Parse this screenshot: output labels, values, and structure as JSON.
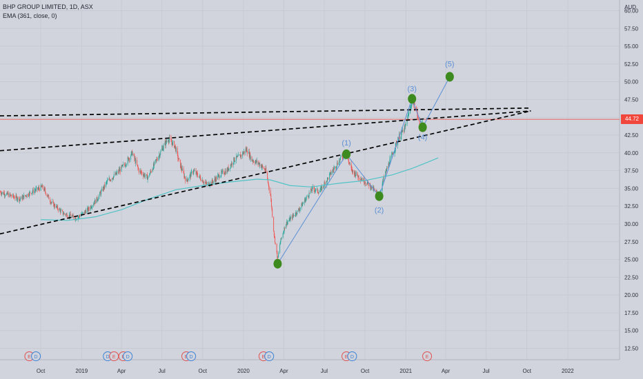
{
  "header": {
    "symbol_line": "BHP GROUP LIMITED, 1D, ASX",
    "indicator_line": "EMA (361, close, 0)",
    "currency": "AUD",
    "last_price": "44.72"
  },
  "colors": {
    "background": "#d1d4dc",
    "candle_up": "#26a69a",
    "candle_down": "#ef5350",
    "ema": "#4fc3c7",
    "wave": "#5b8fd6",
    "marker": "#3d8b1e",
    "trendline": "#000000",
    "last_price_line": "#f0463c",
    "earnings_event": "#e05050",
    "dividend_event": "#3b82d6"
  },
  "chart_data": {
    "type": "candlestick",
    "title": "BHP GROUP LIMITED, 1D, ASX",
    "ylabel": "AUD",
    "ylim": [
      10.9,
      61.5
    ],
    "y_ticks": [
      "60.00",
      "57.50",
      "55.00",
      "52.50",
      "50.00",
      "47.50",
      "45.00",
      "42.50",
      "40.00",
      "37.50",
      "35.00",
      "32.50",
      "30.00",
      "27.50",
      "25.00",
      "22.50",
      "20.00",
      "17.50",
      "15.00",
      "12.50"
    ],
    "x_ticks": [
      "Oct",
      "2019",
      "Apr",
      "Jul",
      "Oct",
      "2020",
      "Apr",
      "Jul",
      "Oct",
      "2021",
      "Apr",
      "Jul",
      "Oct",
      "2022"
    ],
    "x_tick_dates": [
      "2018-10-01",
      "2019-01-01",
      "2019-04-01",
      "2019-07-01",
      "2019-10-01",
      "2020-01-01",
      "2020-04-01",
      "2020-07-01",
      "2020-10-01",
      "2021-01-01",
      "2021-04-01",
      "2021-07-01",
      "2021-10-01",
      "2022-01-01"
    ],
    "grid": true,
    "last_price": 44.72,
    "price_path": [
      [
        "2018-07-01",
        34.5
      ],
      [
        "2018-08-15",
        33.5
      ],
      [
        "2018-09-10",
        34.5
      ],
      [
        "2018-10-05",
        35.2
      ],
      [
        "2018-10-25",
        33.0
      ],
      [
        "2018-11-20",
        31.5
      ],
      [
        "2018-12-20",
        30.8
      ],
      [
        "2019-01-15",
        32.0
      ],
      [
        "2019-02-05",
        33.5
      ],
      [
        "2019-02-28",
        36.0
      ],
      [
        "2019-03-20",
        37.0
      ],
      [
        "2019-04-10",
        38.5
      ],
      [
        "2019-04-25",
        40.0
      ],
      [
        "2019-05-10",
        37.5
      ],
      [
        "2019-05-30",
        36.5
      ],
      [
        "2019-06-15",
        38.5
      ],
      [
        "2019-07-01",
        40.5
      ],
      [
        "2019-07-15",
        42.0
      ],
      [
        "2019-07-30",
        41.0
      ],
      [
        "2019-08-10",
        38.5
      ],
      [
        "2019-08-25",
        36.0
      ],
      [
        "2019-09-10",
        37.5
      ],
      [
        "2019-09-25",
        36.5
      ],
      [
        "2019-10-10",
        35.5
      ],
      [
        "2019-10-25",
        36.0
      ],
      [
        "2019-11-10",
        37.0
      ],
      [
        "2019-11-25",
        37.5
      ],
      [
        "2019-12-10",
        39.0
      ],
      [
        "2019-12-24",
        39.5
      ],
      [
        "2020-01-08",
        40.5
      ],
      [
        "2020-01-20",
        39.0
      ],
      [
        "2020-02-05",
        38.5
      ],
      [
        "2020-02-20",
        37.5
      ],
      [
        "2020-03-02",
        34.0
      ],
      [
        "2020-03-10",
        28.5
      ],
      [
        "2020-03-18",
        25.0
      ],
      [
        "2020-03-24",
        27.5
      ],
      [
        "2020-04-05",
        30.0
      ],
      [
        "2020-04-20",
        31.0
      ],
      [
        "2020-05-05",
        32.0
      ],
      [
        "2020-05-20",
        33.5
      ],
      [
        "2020-06-05",
        35.0
      ],
      [
        "2020-06-20",
        34.5
      ],
      [
        "2020-07-05",
        36.0
      ],
      [
        "2020-07-25",
        38.0
      ],
      [
        "2020-08-10",
        39.5
      ],
      [
        "2020-08-20",
        39.8
      ],
      [
        "2020-09-01",
        37.5
      ],
      [
        "2020-09-20",
        36.5
      ],
      [
        "2020-10-10",
        35.5
      ],
      [
        "2020-10-25",
        34.5
      ],
      [
        "2020-11-02",
        34.0
      ],
      [
        "2020-11-15",
        37.0
      ],
      [
        "2020-11-30",
        39.5
      ],
      [
        "2020-12-15",
        42.0
      ],
      [
        "2020-12-30",
        43.5
      ],
      [
        "2021-01-10",
        46.0
      ],
      [
        "2021-01-15",
        47.5
      ],
      [
        "2021-01-25",
        46.0
      ],
      [
        "2021-02-01",
        43.5
      ],
      [
        "2021-02-08",
        44.5
      ]
    ],
    "series": [
      {
        "name": "EMA (361, close, 0)",
        "type": "line",
        "points": [
          [
            "2018-10-01",
            30.6
          ],
          [
            "2018-12-01",
            30.5
          ],
          [
            "2019-02-01",
            31.0
          ],
          [
            "2019-04-01",
            32.0
          ],
          [
            "2019-06-01",
            33.5
          ],
          [
            "2019-08-01",
            34.8
          ],
          [
            "2019-10-01",
            35.4
          ],
          [
            "2019-12-01",
            35.9
          ],
          [
            "2020-02-01",
            36.3
          ],
          [
            "2020-03-01",
            36.2
          ],
          [
            "2020-04-15",
            35.4
          ],
          [
            "2020-06-01",
            35.2
          ],
          [
            "2020-08-01",
            35.7
          ],
          [
            "2020-10-01",
            36.1
          ],
          [
            "2020-12-01",
            36.9
          ],
          [
            "2021-01-15",
            37.8
          ],
          [
            "2021-02-20",
            38.7
          ],
          [
            "2021-03-15",
            39.3
          ]
        ]
      }
    ],
    "trendlines": [
      {
        "from": [
          "2018-07-01",
          28.6
        ],
        "to": [
          "2021-10-10",
          45.9
        ]
      },
      {
        "from": [
          "2018-07-01",
          40.3
        ],
        "to": [
          "2021-10-10",
          45.9
        ]
      },
      {
        "from": [
          "2018-07-01",
          45.2
        ],
        "to": [
          "2021-10-10",
          46.3
        ]
      }
    ],
    "wave_points": [
      {
        "label": "",
        "date": "2020-03-18",
        "price": 24.4
      },
      {
        "label": "(1)",
        "date": "2020-08-20",
        "price": 39.8
      },
      {
        "label": "(2)",
        "date": "2020-11-02",
        "price": 33.9
      },
      {
        "label": "(3)",
        "date": "2021-01-15",
        "price": 47.6
      },
      {
        "label": "(4)",
        "date": "2021-02-08",
        "price": 43.6
      },
      {
        "label": "(5)",
        "date": "2021-04-10",
        "price": 50.7
      }
    ],
    "events": [
      {
        "type": "E",
        "date": "2018-09-05"
      },
      {
        "type": "D",
        "date": "2018-09-20"
      },
      {
        "type": "D",
        "date": "2019-03-01"
      },
      {
        "type": "E",
        "date": "2019-03-15"
      },
      {
        "type": "E",
        "date": "2019-04-05"
      },
      {
        "type": "D",
        "date": "2019-04-15"
      },
      {
        "type": "E",
        "date": "2019-08-25"
      },
      {
        "type": "D",
        "date": "2019-09-05"
      },
      {
        "type": "E",
        "date": "2020-02-15"
      },
      {
        "type": "D",
        "date": "2020-02-28"
      },
      {
        "type": "E",
        "date": "2020-08-20"
      },
      {
        "type": "D",
        "date": "2020-09-02"
      },
      {
        "type": "E",
        "date": "2021-02-18"
      }
    ]
  }
}
